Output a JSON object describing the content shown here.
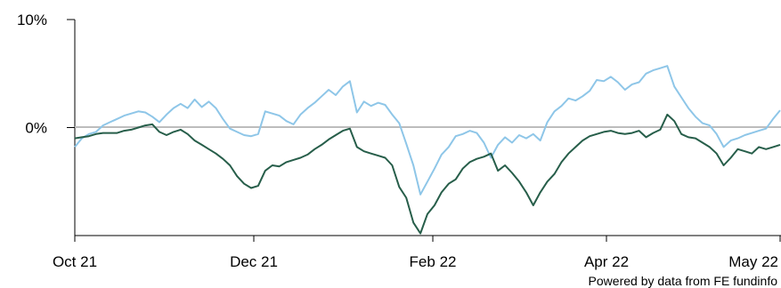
{
  "chart_data": {
    "type": "line",
    "title": "",
    "xlabel": "",
    "ylabel": "",
    "ylim": [
      -10,
      10
    ],
    "xlim": [
      0,
      1
    ],
    "x_ticks": [
      {
        "label": "Oct 21",
        "x": 0.0
      },
      {
        "label": "Dec 21",
        "x": 0.2538
      },
      {
        "label": "Feb 22",
        "x": 0.5076
      },
      {
        "label": "Apr 22",
        "x": 0.7538
      },
      {
        "label": "May 22",
        "x": 1.0
      }
    ],
    "y_ticks": [
      {
        "label": "10%",
        "value": 10
      },
      {
        "label": "0%",
        "value": 0
      }
    ],
    "zero_line": true,
    "grid": false,
    "legend": "none",
    "series": [
      {
        "color": "#8ec6e8",
        "points": [
          [
            0.0,
            -1.8
          ],
          [
            0.01,
            -1.0
          ],
          [
            0.02,
            -0.6
          ],
          [
            0.03,
            -0.4
          ],
          [
            0.04,
            0.2
          ],
          [
            0.05,
            0.5
          ],
          [
            0.06,
            0.8
          ],
          [
            0.07,
            1.1
          ],
          [
            0.08,
            1.3
          ],
          [
            0.09,
            1.5
          ],
          [
            0.1,
            1.4
          ],
          [
            0.11,
            1.0
          ],
          [
            0.12,
            0.5
          ],
          [
            0.13,
            1.2
          ],
          [
            0.14,
            1.8
          ],
          [
            0.15,
            2.2
          ],
          [
            0.16,
            1.8
          ],
          [
            0.17,
            2.6
          ],
          [
            0.18,
            1.9
          ],
          [
            0.19,
            2.4
          ],
          [
            0.2,
            1.8
          ],
          [
            0.21,
            0.8
          ],
          [
            0.22,
            -0.1
          ],
          [
            0.23,
            -0.4
          ],
          [
            0.24,
            -0.7
          ],
          [
            0.25,
            -0.8
          ],
          [
            0.26,
            -0.6
          ],
          [
            0.27,
            1.5
          ],
          [
            0.28,
            1.3
          ],
          [
            0.29,
            1.1
          ],
          [
            0.3,
            0.6
          ],
          [
            0.31,
            0.3
          ],
          [
            0.32,
            1.2
          ],
          [
            0.33,
            1.8
          ],
          [
            0.34,
            2.3
          ],
          [
            0.35,
            2.9
          ],
          [
            0.36,
            3.5
          ],
          [
            0.37,
            3.0
          ],
          [
            0.38,
            3.8
          ],
          [
            0.39,
            4.3
          ],
          [
            0.4,
            1.4
          ],
          [
            0.41,
            2.4
          ],
          [
            0.42,
            2.0
          ],
          [
            0.43,
            2.3
          ],
          [
            0.44,
            2.1
          ],
          [
            0.45,
            1.2
          ],
          [
            0.46,
            0.4
          ],
          [
            0.47,
            -1.5
          ],
          [
            0.48,
            -3.5
          ],
          [
            0.49,
            -6.2
          ],
          [
            0.5,
            -5.0
          ],
          [
            0.51,
            -3.8
          ],
          [
            0.52,
            -2.5
          ],
          [
            0.53,
            -1.8
          ],
          [
            0.54,
            -0.8
          ],
          [
            0.55,
            -0.6
          ],
          [
            0.56,
            -0.3
          ],
          [
            0.57,
            -0.5
          ],
          [
            0.58,
            -1.4
          ],
          [
            0.59,
            -2.8
          ],
          [
            0.6,
            -1.6
          ],
          [
            0.61,
            -0.9
          ],
          [
            0.62,
            -1.4
          ],
          [
            0.63,
            -0.7
          ],
          [
            0.64,
            -1.0
          ],
          [
            0.65,
            -0.6
          ],
          [
            0.66,
            -1.2
          ],
          [
            0.67,
            0.5
          ],
          [
            0.68,
            1.5
          ],
          [
            0.69,
            2.0
          ],
          [
            0.7,
            2.7
          ],
          [
            0.71,
            2.5
          ],
          [
            0.72,
            2.9
          ],
          [
            0.73,
            3.4
          ],
          [
            0.74,
            4.4
          ],
          [
            0.75,
            4.3
          ],
          [
            0.76,
            4.7
          ],
          [
            0.77,
            4.2
          ],
          [
            0.78,
            3.5
          ],
          [
            0.79,
            4.0
          ],
          [
            0.8,
            4.2
          ],
          [
            0.81,
            5.0
          ],
          [
            0.82,
            5.3
          ],
          [
            0.83,
            5.5
          ],
          [
            0.84,
            5.7
          ],
          [
            0.85,
            3.8
          ],
          [
            0.86,
            2.8
          ],
          [
            0.87,
            1.8
          ],
          [
            0.88,
            1.0
          ],
          [
            0.89,
            0.4
          ],
          [
            0.9,
            0.2
          ],
          [
            0.91,
            -0.6
          ],
          [
            0.92,
            -1.8
          ],
          [
            0.93,
            -1.2
          ],
          [
            0.94,
            -1.0
          ],
          [
            0.95,
            -0.7
          ],
          [
            0.96,
            -0.5
          ],
          [
            0.97,
            -0.3
          ],
          [
            0.98,
            -0.1
          ],
          [
            0.99,
            0.8
          ],
          [
            1.0,
            1.6
          ]
        ]
      },
      {
        "color": "#275e4a",
        "points": [
          [
            0.0,
            -1.0
          ],
          [
            0.01,
            -0.9
          ],
          [
            0.02,
            -0.8
          ],
          [
            0.03,
            -0.6
          ],
          [
            0.04,
            -0.5
          ],
          [
            0.05,
            -0.5
          ],
          [
            0.06,
            -0.5
          ],
          [
            0.07,
            -0.3
          ],
          [
            0.08,
            -0.2
          ],
          [
            0.09,
            0.0
          ],
          [
            0.1,
            0.2
          ],
          [
            0.11,
            0.3
          ],
          [
            0.12,
            -0.4
          ],
          [
            0.13,
            -0.7
          ],
          [
            0.14,
            -0.4
          ],
          [
            0.15,
            -0.2
          ],
          [
            0.16,
            -0.6
          ],
          [
            0.17,
            -1.2
          ],
          [
            0.18,
            -1.6
          ],
          [
            0.19,
            -2.0
          ],
          [
            0.2,
            -2.4
          ],
          [
            0.21,
            -2.9
          ],
          [
            0.22,
            -3.5
          ],
          [
            0.23,
            -4.5
          ],
          [
            0.24,
            -5.2
          ],
          [
            0.25,
            -5.6
          ],
          [
            0.26,
            -5.4
          ],
          [
            0.27,
            -4.0
          ],
          [
            0.28,
            -3.5
          ],
          [
            0.29,
            -3.6
          ],
          [
            0.3,
            -3.2
          ],
          [
            0.31,
            -3.0
          ],
          [
            0.32,
            -2.8
          ],
          [
            0.33,
            -2.5
          ],
          [
            0.34,
            -2.0
          ],
          [
            0.35,
            -1.6
          ],
          [
            0.36,
            -1.1
          ],
          [
            0.37,
            -0.7
          ],
          [
            0.38,
            -0.3
          ],
          [
            0.39,
            -0.1
          ],
          [
            0.4,
            -1.8
          ],
          [
            0.41,
            -2.2
          ],
          [
            0.42,
            -2.4
          ],
          [
            0.43,
            -2.6
          ],
          [
            0.44,
            -2.8
          ],
          [
            0.45,
            -3.5
          ],
          [
            0.46,
            -5.5
          ],
          [
            0.47,
            -6.5
          ],
          [
            0.48,
            -8.8
          ],
          [
            0.49,
            -9.8
          ],
          [
            0.5,
            -8.0
          ],
          [
            0.51,
            -7.2
          ],
          [
            0.52,
            -6.0
          ],
          [
            0.53,
            -5.2
          ],
          [
            0.54,
            -4.8
          ],
          [
            0.55,
            -3.8
          ],
          [
            0.56,
            -3.2
          ],
          [
            0.57,
            -2.9
          ],
          [
            0.58,
            -2.7
          ],
          [
            0.59,
            -2.4
          ],
          [
            0.6,
            -4.0
          ],
          [
            0.61,
            -3.5
          ],
          [
            0.62,
            -4.2
          ],
          [
            0.63,
            -5.0
          ],
          [
            0.64,
            -6.0
          ],
          [
            0.65,
            -7.2
          ],
          [
            0.66,
            -6.0
          ],
          [
            0.67,
            -5.0
          ],
          [
            0.68,
            -4.3
          ],
          [
            0.69,
            -3.2
          ],
          [
            0.7,
            -2.4
          ],
          [
            0.71,
            -1.8
          ],
          [
            0.72,
            -1.2
          ],
          [
            0.73,
            -0.8
          ],
          [
            0.74,
            -0.6
          ],
          [
            0.75,
            -0.4
          ],
          [
            0.76,
            -0.3
          ],
          [
            0.77,
            -0.5
          ],
          [
            0.78,
            -0.6
          ],
          [
            0.79,
            -0.5
          ],
          [
            0.8,
            -0.3
          ],
          [
            0.81,
            -0.9
          ],
          [
            0.82,
            -0.5
          ],
          [
            0.83,
            -0.2
          ],
          [
            0.84,
            1.2
          ],
          [
            0.85,
            0.6
          ],
          [
            0.86,
            -0.6
          ],
          [
            0.87,
            -0.9
          ],
          [
            0.88,
            -1.0
          ],
          [
            0.89,
            -1.4
          ],
          [
            0.9,
            -1.8
          ],
          [
            0.91,
            -2.4
          ],
          [
            0.92,
            -3.5
          ],
          [
            0.93,
            -2.8
          ],
          [
            0.94,
            -2.0
          ],
          [
            0.95,
            -2.2
          ],
          [
            0.96,
            -2.4
          ],
          [
            0.97,
            -1.8
          ],
          [
            0.98,
            -2.0
          ],
          [
            0.99,
            -1.8
          ],
          [
            1.0,
            -1.6
          ]
        ]
      }
    ]
  },
  "credit": "Powered by data from FE fundinfo"
}
